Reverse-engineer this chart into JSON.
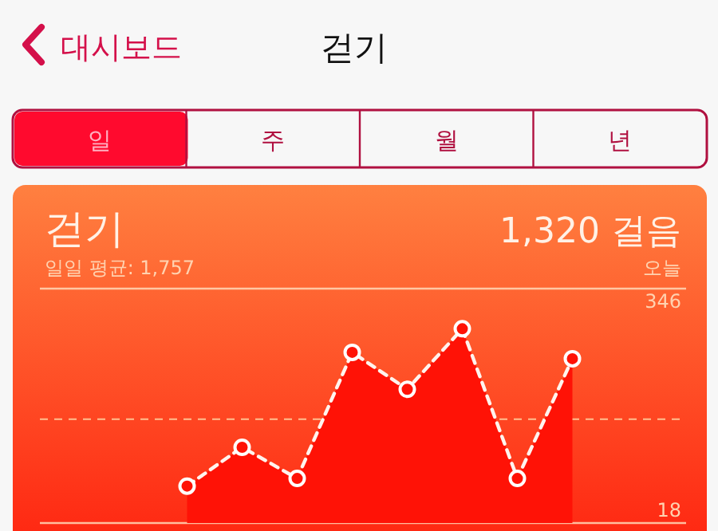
{
  "chart_data": {
    "type": "area",
    "title": "걷기",
    "subtitle": "일일 평균: 1,757",
    "annotations": [
      "대시보드",
      "걷기",
      "일",
      "주",
      "월",
      "년",
      "1,320 걸음",
      "오늘"
    ],
    "categories": [
      null,
      null,
      null,
      null,
      null,
      null,
      null,
      null
    ],
    "series": [
      {
        "color": "#ff1206",
        "values": [
          56,
          117,
          68,
          266,
          208,
          303,
          68,
          256
        ]
      }
    ],
    "ylim": [
      -2,
      366
    ],
    "yticks": [
      18,
      346
    ],
    "tick_labels": "y",
    "marker": "circle",
    "line_style": "dashed",
    "ref_lines": [
      {
        "axis": "y",
        "value": 161,
        "line_style": "dashed"
      }
    ]
  }
}
